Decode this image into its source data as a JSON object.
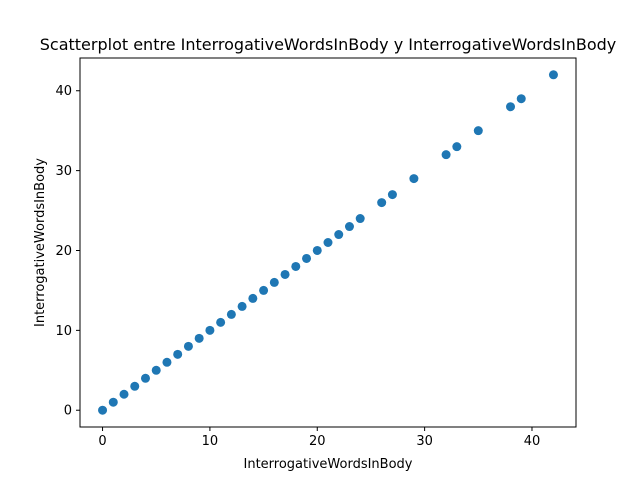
{
  "chart_data": {
    "type": "scatter",
    "title": "Scatterplot entre InterrogativeWordsInBody y InterrogativeWordsInBody",
    "xlabel": "InterrogativeWordsInBody",
    "ylabel": "InterrogativeWordsInBody",
    "xlim": [
      -2.1,
      44.1
    ],
    "ylim": [
      -2.1,
      44.1
    ],
    "x_ticks": [
      0,
      10,
      20,
      30,
      40
    ],
    "y_ticks": [
      0,
      10,
      20,
      30,
      40
    ],
    "grid": false,
    "marker_color": "#1f77b4",
    "series": [
      {
        "x": [
          0,
          1,
          2,
          3,
          4,
          5,
          6,
          7,
          8,
          9,
          10,
          11,
          12,
          13,
          14,
          15,
          16,
          17,
          18,
          19,
          20,
          21,
          22,
          23,
          24,
          26,
          27,
          29,
          32,
          33,
          35,
          38,
          39,
          42
        ],
        "y": [
          0,
          1,
          2,
          3,
          4,
          5,
          6,
          7,
          8,
          9,
          10,
          11,
          12,
          13,
          14,
          15,
          16,
          17,
          18,
          19,
          20,
          21,
          22,
          23,
          24,
          26,
          27,
          29,
          32,
          33,
          35,
          38,
          39,
          42
        ]
      }
    ]
  }
}
